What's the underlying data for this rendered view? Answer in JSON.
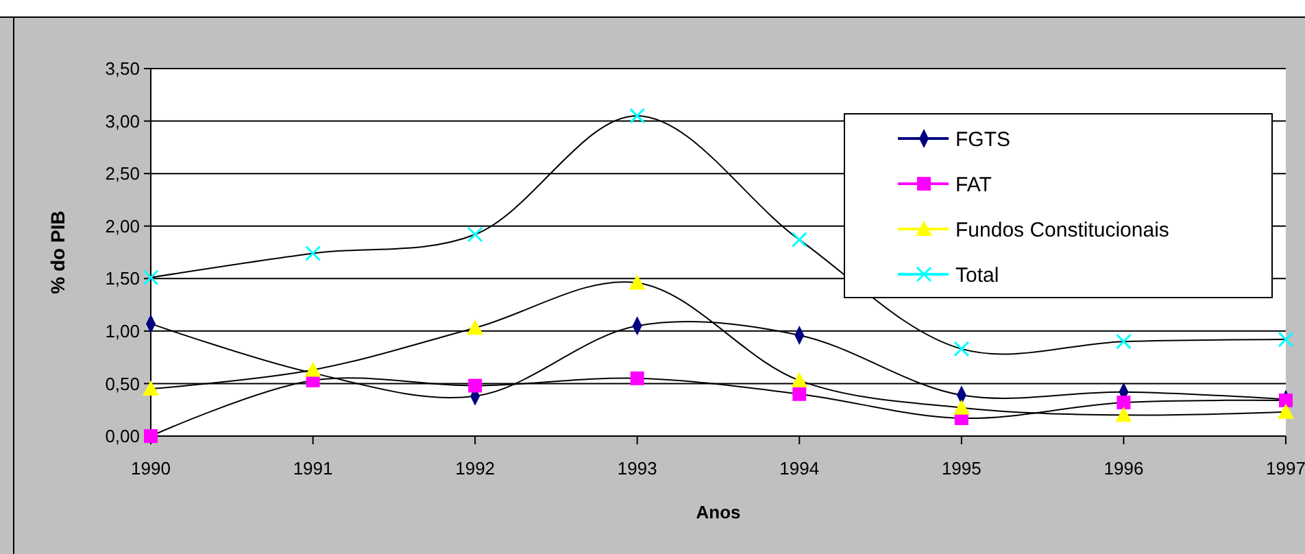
{
  "chart_data": {
    "type": "line",
    "xlabel": "Anos",
    "ylabel": "% do PIB",
    "categories": [
      "1990",
      "1991",
      "1992",
      "1993",
      "1994",
      "1995",
      "1996",
      "1997"
    ],
    "series": [
      {
        "name": "FGTS",
        "color": "#000080",
        "marker": "diamond",
        "values": [
          1.07,
          0.6,
          0.38,
          1.05,
          0.96,
          0.39,
          0.42,
          0.35
        ]
      },
      {
        "name": "FAT",
        "color": "#ff00ff",
        "marker": "square",
        "values": [
          0,
          0.53,
          0.48,
          0.55,
          0.4,
          0.17,
          0.32,
          0.34
        ]
      },
      {
        "name": "Fundos Constitucionais",
        "color": "#ffff00",
        "marker": "triangle",
        "values": [
          0.45,
          0.63,
          1.03,
          1.46,
          0.53,
          0.27,
          0.2,
          0.23
        ]
      },
      {
        "name": "Total",
        "color": "#00ffff",
        "marker": "cross",
        "values": [
          1.51,
          1.74,
          1.92,
          3.05,
          1.87,
          0.83,
          0.9,
          0.92
        ]
      }
    ],
    "ylim": [
      0,
      3.5
    ],
    "yticks": [
      {
        "value": 0,
        "label": "0,00"
      },
      {
        "value": 0.5,
        "label": "0,50"
      },
      {
        "value": 1,
        "label": "1,00"
      },
      {
        "value": 1.5,
        "label": "1,50"
      },
      {
        "value": 2,
        "label": "2,00"
      },
      {
        "value": 2.5,
        "label": "2,50"
      },
      {
        "value": 3,
        "label": "3,00"
      },
      {
        "value": 3.5,
        "label": "3,50"
      }
    ],
    "grid": "y",
    "legend": "top right"
  }
}
